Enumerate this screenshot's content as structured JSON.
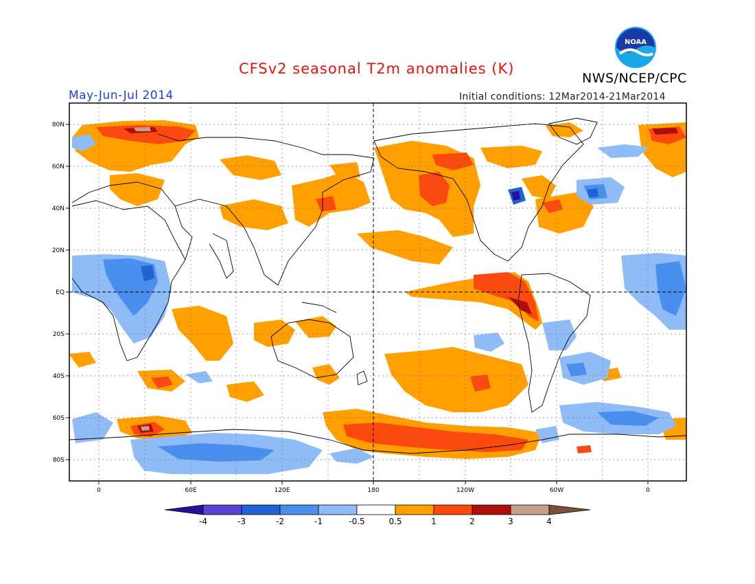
{
  "header": {
    "title": "CFSv2 seasonal T2m anomalies (K)",
    "agency": "NWS/NCEP/CPC",
    "period": "May-Jun-Jul 2014",
    "initial_conditions": "Initial conditions: 12Mar2014-21Mar2014",
    "logo_text": "NOAA"
  },
  "map": {
    "lat_labels": [
      "80N",
      "60N",
      "40N",
      "20N",
      "EQ",
      "20S",
      "40S",
      "60S",
      "80S"
    ],
    "lon_labels": [
      "0",
      "60E",
      "120E",
      "180",
      "120W",
      "60W",
      "0"
    ]
  },
  "colorbar": {
    "labels": [
      "-4",
      "-3",
      "-2",
      "-1",
      "-0.5",
      "0.5",
      "1",
      "2",
      "3",
      "4"
    ],
    "colors": {
      "lt_m4": "#2a0f9c",
      "m4_m3": "#5744d2",
      "m3_m2": "#1f63d6",
      "m2_m1": "#4a8fee",
      "m1_m05": "#8fbcf7",
      "m05_05": "#ffffff",
      "p05_1": "#ff9f00",
      "p1_2": "#fb4a10",
      "p2_3": "#b00d0d",
      "p3_4": "#c4a090",
      "gt_4": "#7a5040"
    }
  }
}
